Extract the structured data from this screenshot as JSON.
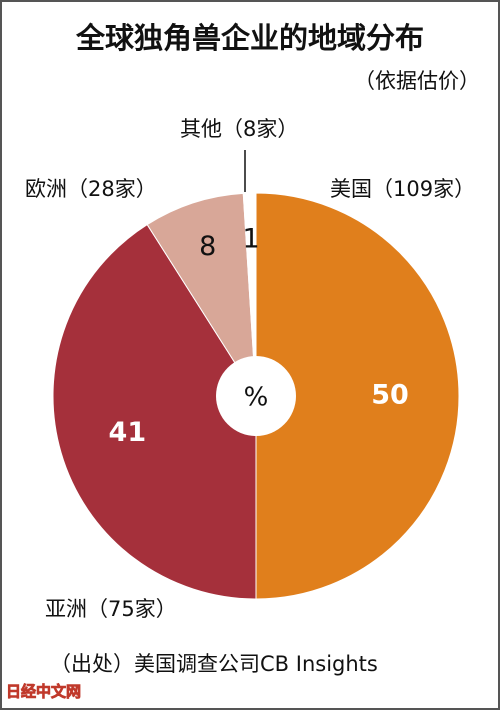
{
  "chart_data": {
    "type": "pie",
    "title": "全球独角兽企业的地域分布",
    "subtitle": "（依据估价）",
    "center_label": "%",
    "categories": [
      "美国（109家）",
      "亚洲（75家）",
      "欧洲（28家）",
      "其他（8家）"
    ],
    "values": [
      50,
      41,
      8,
      1
    ],
    "colors": [
      "#e07f1c",
      "#a5303b",
      "#d8a798",
      "#ffffff"
    ],
    "source": "（出处）美国调查公司CB Insights",
    "watermark": "日经中文网"
  }
}
